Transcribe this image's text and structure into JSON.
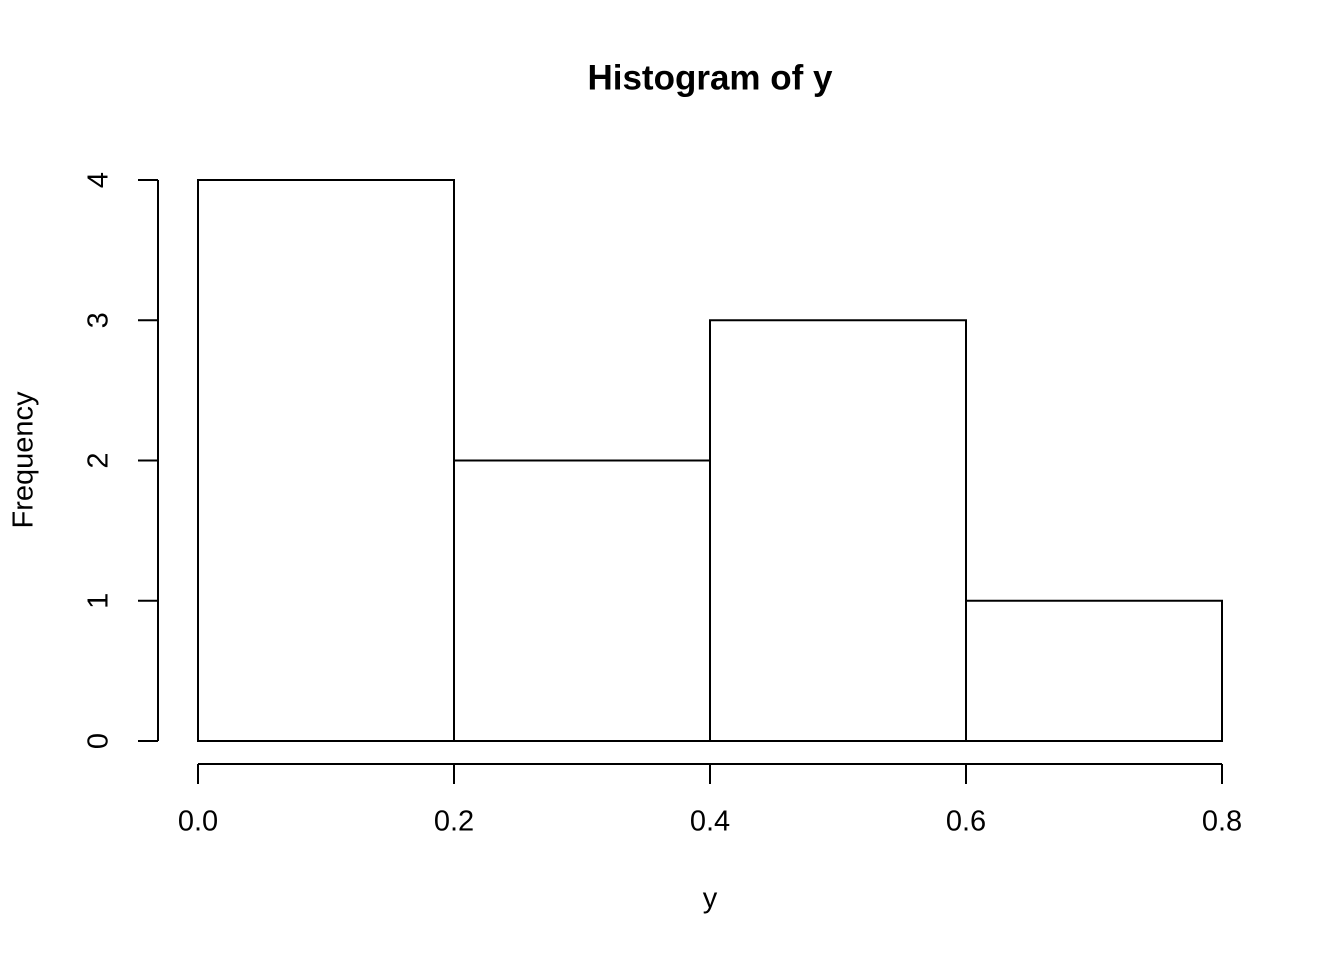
{
  "chart_data": {
    "type": "histogram",
    "title": "Histogram of y",
    "x_label": "y",
    "y_label": "Frequency",
    "bins": [
      0,
      0.2,
      0.4,
      0.6,
      0.8
    ],
    "counts": [
      4,
      2,
      3,
      1
    ],
    "color": "#ffffff",
    "edge_color": "#000000",
    "xlim": [
      0,
      0.8
    ],
    "ylim": [
      0,
      4
    ],
    "xticks": [
      {
        "value": 0,
        "label": "0.0"
      },
      0.2,
      0.4,
      0.6,
      0.8
    ],
    "yticks": [
      0,
      1,
      2,
      3,
      4
    ],
    "grid": false
  }
}
